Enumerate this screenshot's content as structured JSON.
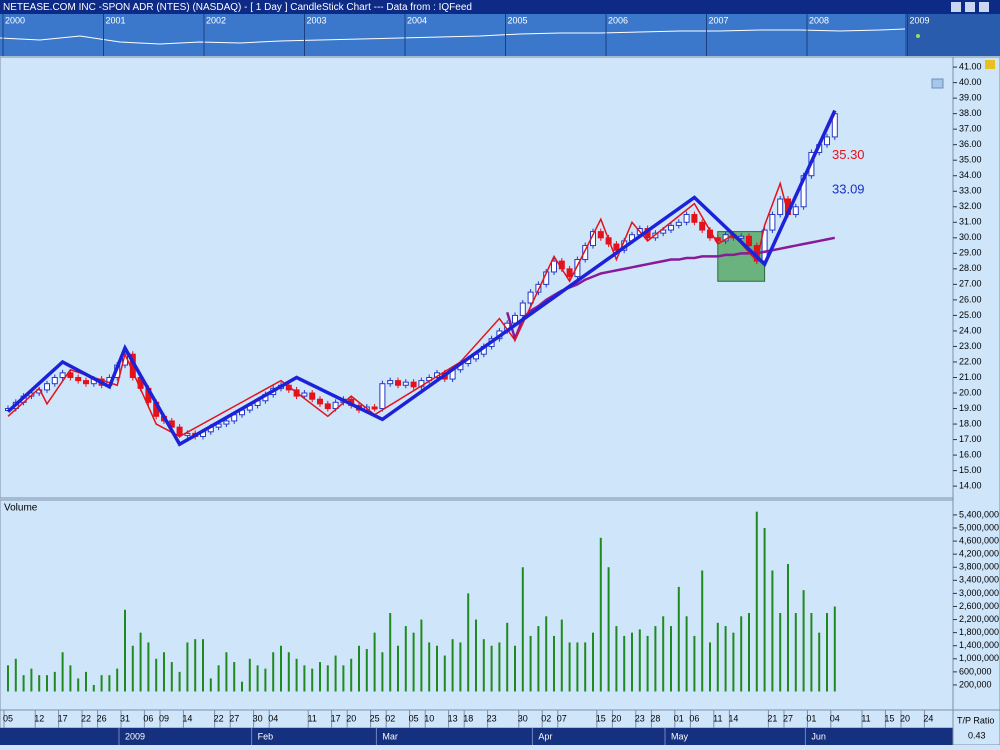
{
  "header": {
    "title": "NETEASE.COM INC  -SPON ADR (NTES) (NASDAQ) -  [ 1 Day ] CandleStick Chart --- Data from : IQFeed"
  },
  "overview": {
    "years": [
      "2000",
      "2001",
      "2002",
      "2003",
      "2004",
      "2005",
      "2006",
      "2007",
      "2008",
      "2009"
    ]
  },
  "status": {
    "label": "T/P Ratio",
    "value": "0.43"
  },
  "chart_data": [
    {
      "type": "candlestick",
      "categories": [
        "05",
        null,
        null,
        null,
        "12",
        null,
        null,
        "17",
        null,
        null,
        "22",
        null,
        "26",
        null,
        null,
        "31",
        null,
        null,
        "06",
        null,
        "09",
        null,
        null,
        "14",
        null,
        null,
        null,
        "22",
        null,
        "27",
        null,
        null,
        "30",
        null,
        "04",
        null,
        null,
        null,
        null,
        "11",
        null,
        null,
        "17",
        null,
        "20",
        null,
        null,
        "25",
        null,
        "02",
        null,
        null,
        "05",
        null,
        "10",
        null,
        null,
        "13",
        null,
        "18",
        null,
        null,
        "23",
        null,
        null,
        null,
        "30",
        null,
        null,
        "02",
        null,
        "07",
        null,
        null,
        null,
        null,
        "15",
        null,
        "20",
        null,
        null,
        "23",
        null,
        "28",
        null,
        null,
        "01",
        null,
        "06",
        null,
        null,
        "11",
        null,
        "14",
        null,
        null,
        null,
        null,
        "21",
        null,
        "27",
        null,
        null,
        "01",
        null,
        null,
        "04",
        null,
        null,
        null,
        "11",
        null,
        null,
        "15",
        null,
        "20",
        null,
        null,
        "24",
        null
      ],
      "month_labels": [
        {
          "index": 15,
          "label": "2009"
        },
        {
          "index": 32,
          "label": "Feb"
        },
        {
          "index": 48,
          "label": "Mar"
        },
        {
          "index": 68,
          "label": "Apr"
        },
        {
          "index": 85,
          "label": "May"
        },
        {
          "index": 103,
          "label": "Jun"
        }
      ],
      "values": [
        19.0,
        19.4,
        19.8,
        20.0,
        20.2,
        20.6,
        21.0,
        21.3,
        21.0,
        20.8,
        20.6,
        20.9,
        20.5,
        21.0,
        21.8,
        22.5,
        21.0,
        20.3,
        19.4,
        18.5,
        18.2,
        17.8,
        17.3,
        17.4,
        17.2,
        17.5,
        17.8,
        18.0,
        18.2,
        18.6,
        18.9,
        19.2,
        19.5,
        19.9,
        20.3,
        20.5,
        20.2,
        19.8,
        20.0,
        19.6,
        19.3,
        19.0,
        19.4,
        19.6,
        19.2,
        18.9,
        19.1,
        19.0,
        20.6,
        20.8,
        20.5,
        20.7,
        20.4,
        20.8,
        21.0,
        21.3,
        20.9,
        21.5,
        21.9,
        22.2,
        22.5,
        23.0,
        23.5,
        24.0,
        24.5,
        25.0,
        25.8,
        26.5,
        27.0,
        27.8,
        28.5,
        28.0,
        27.5,
        28.6,
        29.5,
        30.4,
        30.0,
        29.6,
        29.2,
        29.8,
        30.2,
        30.6,
        30.0,
        30.3,
        30.5,
        30.8,
        31.0,
        31.5,
        31.0,
        30.5,
        30.0,
        29.8,
        30.2,
        30.0,
        30.1,
        29.5,
        28.5,
        30.5,
        31.5,
        32.5,
        31.5,
        32.0,
        34.0,
        35.5,
        36.0,
        36.5,
        38.0,
        null,
        null,
        null,
        null,
        null,
        null,
        null,
        null,
        null,
        null,
        null,
        null,
        null
      ],
      "up_color": "#ffffff",
      "down_color": "#e3121b",
      "outline_color": "#2338c8",
      "moving_average": {
        "color": "#8a1a9a",
        "values": [
          null,
          null,
          null,
          null,
          null,
          null,
          null,
          null,
          null,
          null,
          null,
          null,
          null,
          null,
          null,
          null,
          null,
          null,
          null,
          null,
          null,
          null,
          null,
          null,
          null,
          null,
          null,
          null,
          null,
          null,
          null,
          null,
          null,
          null,
          null,
          null,
          null,
          null,
          null,
          null,
          null,
          null,
          null,
          null,
          null,
          null,
          null,
          null,
          null,
          null,
          null,
          null,
          null,
          null,
          null,
          null,
          null,
          null,
          null,
          null,
          null,
          null,
          null,
          null,
          25.2,
          23.5,
          24.8,
          25.3,
          25.6,
          26.0,
          26.3,
          26.6,
          26.8,
          27.0,
          27.3,
          27.5,
          27.7,
          27.8,
          27.9,
          28.0,
          28.1,
          28.2,
          28.3,
          28.4,
          28.5,
          28.6,
          28.6,
          28.7,
          28.7,
          28.8,
          28.8,
          28.8,
          28.9,
          28.9,
          29.0,
          29.0,
          29.0,
          29.1,
          29.2,
          29.3,
          29.4,
          29.5,
          29.6,
          29.7,
          29.8,
          29.9,
          30.0,
          null,
          null,
          null,
          null,
          null,
          null,
          null,
          null,
          null,
          null,
          null,
          null,
          null
        ]
      },
      "overlays": [
        {
          "color": "#e3121b",
          "width": 1.5,
          "x": [
            0,
            4,
            5,
            8,
            14,
            15,
            19,
            22,
            35,
            41,
            44,
            47,
            58,
            63,
            65,
            70,
            72,
            76,
            78,
            80,
            82,
            88,
            91,
            93,
            96,
            97,
            99,
            100,
            106
          ],
          "values": [
            18.5,
            20.3,
            19.3,
            21.5,
            20.5,
            22.5,
            18.0,
            17.2,
            20.8,
            18.5,
            19.8,
            18.6,
            22.0,
            24.8,
            23.4,
            28.8,
            27.2,
            31.2,
            28.6,
            31.0,
            29.8,
            32.2,
            29.6,
            30.2,
            28.5,
            30.8,
            33.5,
            31.6,
            38.0
          ]
        },
        {
          "color": "#1c22d8",
          "width": 3.5,
          "x": [
            0,
            7,
            13,
            15,
            22,
            37,
            48,
            88,
            97,
            106
          ],
          "values": [
            18.8,
            22.0,
            20.4,
            22.9,
            16.7,
            21.0,
            18.3,
            32.6,
            28.3,
            38.2
          ]
        }
      ],
      "highlight": {
        "x": [
          91,
          97
        ],
        "values": [
          27.2,
          30.4
        ],
        "color": "#3f9e4a"
      },
      "annotations": [
        {
          "value": 35.3,
          "label": "35.30",
          "color": "#e3121b"
        },
        {
          "value": 33.09,
          "label": "33.09",
          "color": "#1a2ec4"
        }
      ],
      "ylim": [
        13.3,
        41.65
      ],
      "yticks": [
        {
          "value": 14,
          "label": "14.00"
        },
        {
          "value": 15,
          "label": "15.00"
        },
        {
          "value": 16,
          "label": "16.00"
        },
        {
          "value": 17,
          "label": "17.00"
        },
        {
          "value": 18,
          "label": "18.00"
        },
        {
          "value": 19,
          "label": "19.00"
        },
        {
          "value": 20,
          "label": "20.00"
        },
        {
          "value": 21,
          "label": "21.00"
        },
        {
          "value": 22,
          "label": "22.00"
        },
        {
          "value": 23,
          "label": "23.00"
        },
        {
          "value": 24,
          "label": "24.00"
        },
        {
          "value": 25,
          "label": "25.00"
        },
        {
          "value": 26,
          "label": "26.00"
        },
        {
          "value": 27,
          "label": "27.00"
        },
        {
          "value": 28,
          "label": "28.00"
        },
        {
          "value": 29,
          "label": "29.00"
        },
        {
          "value": 30,
          "label": "30.00"
        },
        {
          "value": 31,
          "label": "31.00"
        },
        {
          "value": 32,
          "label": "32.00"
        },
        {
          "value": 33,
          "label": "33.00"
        },
        {
          "value": 34,
          "label": "34.00"
        },
        {
          "value": 35,
          "label": "35.00"
        },
        {
          "value": 36,
          "label": "36.00"
        },
        {
          "value": 37,
          "label": "37.00"
        },
        {
          "value": 38,
          "label": "38.00"
        },
        {
          "value": 39,
          "label": "39.00"
        },
        {
          "value": 40,
          "label": "40.00"
        },
        {
          "value": 41,
          "label": "41.00"
        }
      ]
    },
    {
      "type": "bar",
      "title": "Volume",
      "color": "#1f8a1f",
      "values": [
        800000,
        1000000,
        500000,
        700000,
        500000,
        500000,
        600000,
        1200000,
        800000,
        400000,
        600000,
        200000,
        500000,
        500000,
        700000,
        2500000,
        1400000,
        1800000,
        1500000,
        1000000,
        1200000,
        900000,
        600000,
        1500000,
        1600000,
        1600000,
        400000,
        800000,
        1200000,
        900000,
        300000,
        1000000,
        800000,
        700000,
        1200000,
        1400000,
        1200000,
        1000000,
        800000,
        700000,
        900000,
        800000,
        1100000,
        800000,
        1000000,
        1400000,
        1300000,
        1800000,
        1200000,
        2400000,
        1400000,
        2000000,
        1800000,
        2200000,
        1500000,
        1400000,
        1100000,
        1600000,
        1500000,
        3000000,
        2200000,
        1600000,
        1400000,
        1500000,
        2100000,
        1400000,
        3800000,
        1700000,
        2000000,
        2300000,
        1700000,
        2200000,
        1500000,
        1500000,
        1500000,
        1800000,
        4700000,
        3800000,
        2000000,
        1700000,
        1800000,
        1900000,
        1700000,
        2000000,
        2300000,
        2000000,
        3200000,
        2300000,
        1700000,
        3700000,
        1500000,
        2100000,
        2000000,
        1800000,
        2300000,
        2400000,
        5500000,
        5000000,
        3700000,
        2400000,
        3900000,
        2400000,
        3100000,
        2400000,
        1800000,
        2400000,
        2600000,
        null,
        null,
        null,
        null,
        null,
        null,
        null,
        null,
        null,
        null,
        null,
        null,
        null
      ],
      "ylim": [
        0,
        6000000
      ],
      "yticks": [
        {
          "value": 200000,
          "label": "200,000"
        },
        {
          "value": 600000,
          "label": "600,000"
        },
        {
          "value": 1000000,
          "label": "1,000,000"
        },
        {
          "value": 1400000,
          "label": "1,400,000"
        },
        {
          "value": 1800000,
          "label": "1,800,000"
        },
        {
          "value": 2200000,
          "label": "2,200,000"
        },
        {
          "value": 2600000,
          "label": "2,600,000"
        },
        {
          "value": 3000000,
          "label": "3,000,000"
        },
        {
          "value": 3400000,
          "label": "3,400,000"
        },
        {
          "value": 3800000,
          "label": "3,800,000"
        },
        {
          "value": 4200000,
          "label": "4,200,000"
        },
        {
          "value": 4600000,
          "label": "4,600,000"
        },
        {
          "value": 5000000,
          "label": "5,000,000"
        },
        {
          "value": 5400000,
          "label": "5,400,000"
        }
      ]
    }
  ]
}
